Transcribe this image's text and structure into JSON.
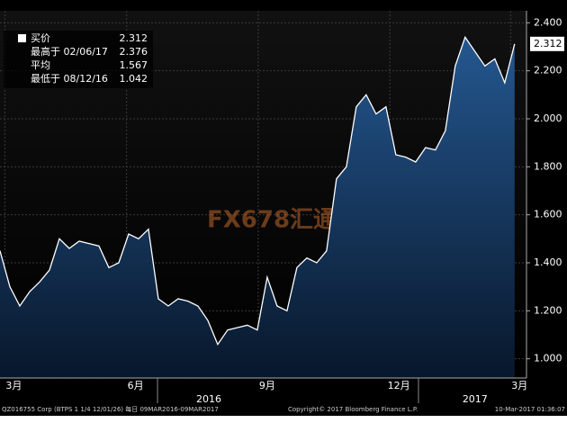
{
  "chart_data": {
    "type": "area",
    "watermark": "FX678汇通网",
    "legend": [
      {
        "label": "买价",
        "value": "2.312"
      },
      {
        "label": "最高于 02/06/17",
        "value": "2.376"
      },
      {
        "label": "平均",
        "value": "1.567"
      },
      {
        "label": "最低于 08/12/16",
        "value": "1.042"
      }
    ],
    "series": [
      {
        "color": "#ffffff",
        "fill": "#1f4f85",
        "values": [
          1.45,
          1.3,
          1.22,
          1.28,
          1.32,
          1.37,
          1.5,
          1.46,
          1.49,
          1.48,
          1.47,
          1.38,
          1.4,
          1.52,
          1.5,
          1.54,
          1.25,
          1.22,
          1.25,
          1.24,
          1.22,
          1.16,
          1.06,
          1.12,
          1.13,
          1.14,
          1.12,
          1.34,
          1.22,
          1.2,
          1.38,
          1.42,
          1.4,
          1.45,
          1.75,
          1.8,
          2.05,
          2.1,
          2.02,
          2.05,
          1.85,
          1.84,
          1.82,
          1.88,
          1.87,
          1.95,
          2.22,
          2.34,
          2.28,
          2.22,
          2.25,
          2.15,
          2.312
        ]
      }
    ],
    "xlim": [
      0,
      53.2
    ],
    "xticks": [
      {
        "value": 1.4,
        "label": "3月"
      },
      {
        "value": 13.7,
        "label": "6月"
      },
      {
        "value": 27,
        "label": "9月"
      },
      {
        "value": 40.3,
        "label": "12月"
      },
      {
        "value": 52.5,
        "label": "3月"
      }
    ],
    "years": [
      {
        "value": 21.1,
        "label": "2016"
      },
      {
        "value": 48,
        "label": "2017"
      }
    ],
    "ylim": [
      0.92,
      2.45
    ],
    "yticks": [
      {
        "value": 1.0,
        "label": "1.000"
      },
      {
        "value": 1.2,
        "label": "1.200"
      },
      {
        "value": 1.4,
        "label": "1.400"
      },
      {
        "value": 1.6,
        "label": "1.600"
      },
      {
        "value": 1.8,
        "label": "1.800"
      },
      {
        "value": 2.0,
        "label": "2.000"
      },
      {
        "value": 2.2,
        "label": "2.200"
      },
      {
        "value": 2.4,
        "label": "2.400"
      }
    ],
    "grid": true,
    "footer": [
      "QZ016755 Corp (BTPS 1 1/4 12/01/26) 每日 09MAR2016-09MAR2017",
      "Copyright© 2017 Bloomberg Finance L.P.",
      "10-Mar-2017 01:36:07"
    ]
  }
}
